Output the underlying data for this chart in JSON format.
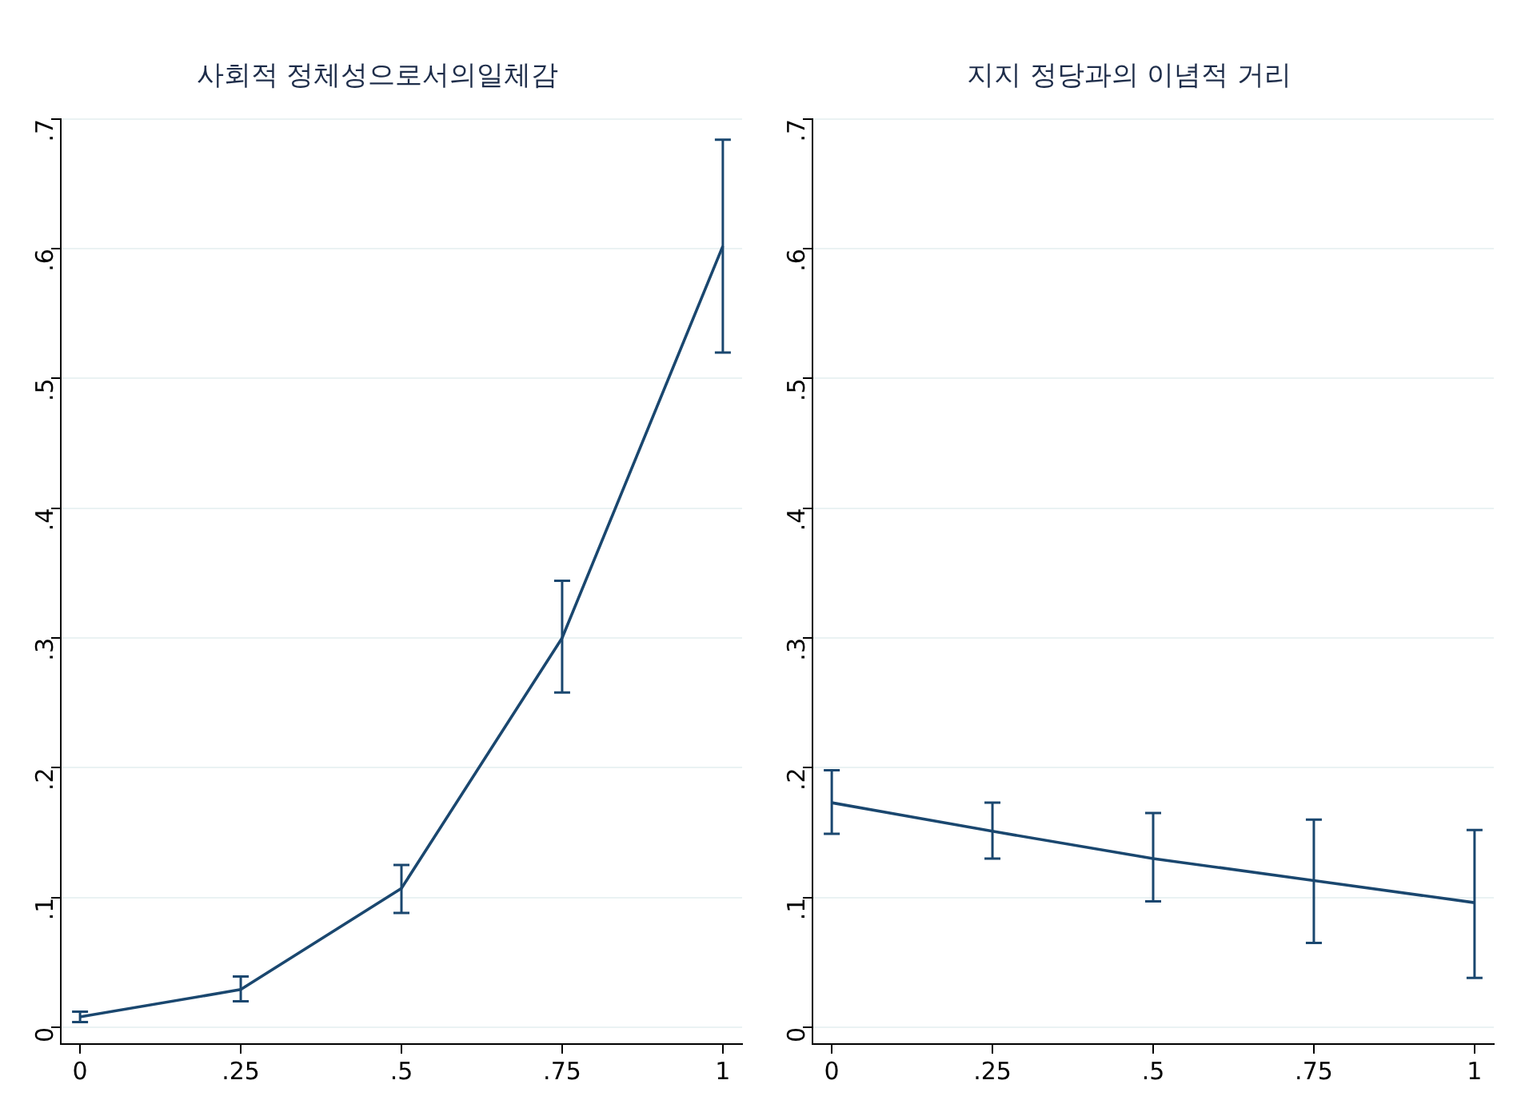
{
  "chart_data": [
    {
      "type": "line",
      "title": "사회적 정체성으로서의일체감",
      "x": [
        0,
        0.25,
        0.5,
        0.75,
        1
      ],
      "values": [
        0.008,
        0.029,
        0.107,
        0.3,
        0.602
      ],
      "errors": [
        [
          0.004,
          0.012
        ],
        [
          0.02,
          0.039
        ],
        [
          0.088,
          0.125
        ],
        [
          0.258,
          0.344
        ],
        [
          0.52,
          0.684
        ]
      ],
      "color": "#1a476f",
      "xlim": [
        -0.03,
        1.03
      ],
      "xticks": [
        {
          "value": 0,
          "label": "0"
        },
        {
          "value": 0.25,
          "label": ".25"
        },
        {
          "value": 0.5,
          "label": ".5"
        },
        {
          "value": 0.75,
          "label": ".75"
        },
        1
      ],
      "ylim": [
        -0.013,
        0.7
      ],
      "yticks": [
        {
          "value": 0,
          "label": "0"
        },
        {
          "value": 0.1,
          "label": ".1"
        },
        {
          "value": 0.2,
          "label": ".2"
        },
        {
          "value": 0.3,
          "label": ".3"
        },
        {
          "value": 0.4,
          "label": ".4"
        },
        {
          "value": 0.5,
          "label": ".5"
        },
        {
          "value": 0.6,
          "label": ".6"
        },
        {
          "value": 0.7,
          "label": ".7"
        }
      ],
      "grid": "y",
      "marker": "none",
      "line_style": "solid",
      "legend": false
    },
    {
      "type": "line",
      "title": "지지 정당과의 이념적 거리",
      "x": [
        0,
        0.25,
        0.5,
        0.75,
        1
      ],
      "values": [
        0.173,
        0.151,
        0.13,
        0.113,
        0.096
      ],
      "errors": [
        [
          0.149,
          0.198
        ],
        [
          0.13,
          0.173
        ],
        [
          0.097,
          0.165
        ],
        [
          0.065,
          0.16
        ],
        [
          0.038,
          0.152
        ]
      ],
      "color": "#1a476f",
      "xlim": [
        -0.03,
        1.03
      ],
      "xticks": [
        {
          "value": 0,
          "label": "0"
        },
        {
          "value": 0.25,
          "label": ".25"
        },
        {
          "value": 0.5,
          "label": ".5"
        },
        {
          "value": 0.75,
          "label": ".75"
        },
        1
      ],
      "ylim": [
        -0.013,
        0.7
      ],
      "yticks": [
        {
          "value": 0,
          "label": "0"
        },
        {
          "value": 0.1,
          "label": ".1"
        },
        {
          "value": 0.2,
          "label": ".2"
        },
        {
          "value": 0.3,
          "label": ".3"
        },
        {
          "value": 0.4,
          "label": ".4"
        },
        {
          "value": 0.5,
          "label": ".5"
        },
        {
          "value": 0.6,
          "label": ".6"
        },
        {
          "value": 0.7,
          "label": ".7"
        }
      ],
      "grid": "y",
      "marker": "none",
      "line_style": "solid",
      "legend": false
    }
  ]
}
